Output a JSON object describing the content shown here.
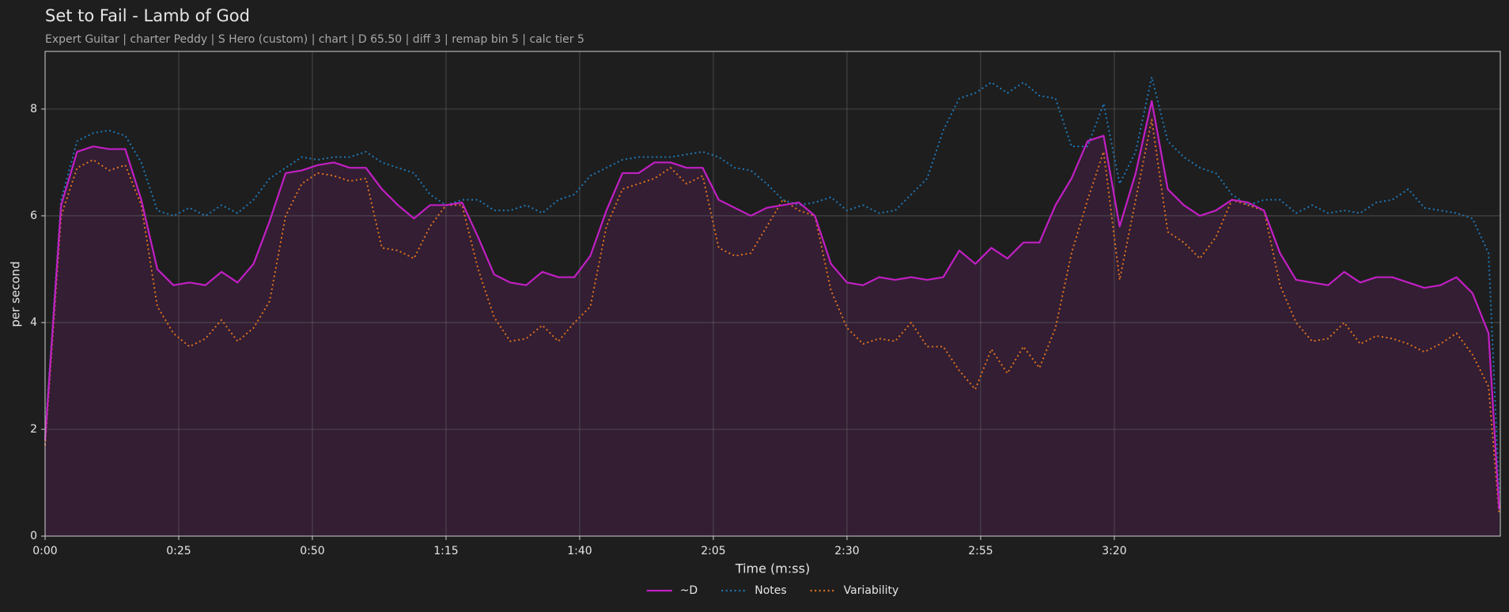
{
  "chart_data": {
    "type": "line",
    "title": "Set to Fail - Lamb of God",
    "subtitle": "Expert Guitar  |  charter Peddy  |  S Hero (custom)  |  chart  |  D 65.50  |  diff 3  |  remap bin 5  |  calc tier 5",
    "xlabel": "Time (m:ss)",
    "ylabel": "per second",
    "x": [
      0,
      3,
      6,
      9,
      12,
      15,
      18,
      21,
      24,
      27,
      30,
      33,
      36,
      39,
      42,
      45,
      48,
      51,
      54,
      57,
      60,
      63,
      66,
      69,
      72,
      75,
      78,
      81,
      84,
      87,
      90,
      93,
      96,
      99,
      102,
      105,
      108,
      111,
      114,
      117,
      120,
      123,
      126,
      129,
      132,
      135,
      138,
      141,
      144,
      147,
      150,
      153,
      156,
      159,
      162,
      165,
      168,
      171,
      174,
      177,
      180,
      183,
      186,
      189,
      192,
      195,
      198,
      201,
      204,
      207,
      210,
      213,
      216,
      219,
      222,
      225,
      228,
      231,
      234,
      237,
      240,
      243,
      246,
      249,
      252,
      255,
      258,
      261,
      264,
      267,
      270,
      272
    ],
    "series": [
      {
        "name": "~D",
        "color": "#c21fc4",
        "linestyle": "solid",
        "fill": true,
        "values": [
          1.8,
          6.2,
          7.2,
          7.3,
          7.25,
          7.25,
          6.3,
          5.0,
          4.7,
          4.75,
          4.7,
          4.95,
          4.75,
          5.1,
          5.9,
          6.8,
          6.85,
          6.95,
          7.0,
          6.9,
          6.9,
          6.5,
          6.2,
          5.95,
          6.2,
          6.2,
          6.25,
          5.6,
          4.9,
          4.75,
          4.7,
          4.95,
          4.85,
          4.85,
          5.25,
          6.1,
          6.8,
          6.8,
          7.0,
          7.0,
          6.9,
          6.9,
          6.3,
          6.15,
          6.0,
          6.15,
          6.2,
          6.25,
          6.0,
          5.1,
          4.75,
          4.7,
          4.85,
          4.8,
          4.85,
          4.8,
          4.85,
          5.35,
          5.1,
          5.4,
          5.2,
          5.5,
          5.5,
          6.2,
          6.7,
          7.4,
          7.5,
          5.8,
          6.8,
          8.15,
          6.5,
          6.2,
          6.0,
          6.1,
          6.3,
          6.25,
          6.1,
          5.3,
          4.8,
          4.75,
          4.7,
          4.95,
          4.75,
          4.85,
          4.85,
          4.75,
          4.65,
          4.7,
          4.85,
          4.55,
          3.8,
          0.5
        ]
      },
      {
        "name": "Notes",
        "color": "#1f78b8",
        "linestyle": "dotted",
        "fill": false,
        "values": [
          1.9,
          6.3,
          7.4,
          7.55,
          7.6,
          7.5,
          7.0,
          6.1,
          6.0,
          6.15,
          6.0,
          6.2,
          6.05,
          6.3,
          6.7,
          6.9,
          7.1,
          7.05,
          7.1,
          7.1,
          7.2,
          7.0,
          6.9,
          6.8,
          6.4,
          6.2,
          6.3,
          6.3,
          6.1,
          6.1,
          6.2,
          6.05,
          6.3,
          6.4,
          6.75,
          6.9,
          7.05,
          7.1,
          7.1,
          7.1,
          7.15,
          7.2,
          7.1,
          6.9,
          6.85,
          6.6,
          6.3,
          6.2,
          6.25,
          6.35,
          6.1,
          6.2,
          6.05,
          6.1,
          6.4,
          6.7,
          7.6,
          8.2,
          8.3,
          8.5,
          8.3,
          8.5,
          8.25,
          8.2,
          7.3,
          7.3,
          8.1,
          6.6,
          7.2,
          8.6,
          7.4,
          7.1,
          6.9,
          6.8,
          6.4,
          6.2,
          6.3,
          6.3,
          6.05,
          6.2,
          6.05,
          6.1,
          6.05,
          6.25,
          6.3,
          6.5,
          6.15,
          6.1,
          6.05,
          5.95,
          5.3,
          0.8
        ]
      },
      {
        "name": "Variability",
        "color": "#e0731f",
        "linestyle": "dotted",
        "fill": false,
        "values": [
          1.7,
          6.0,
          6.9,
          7.05,
          6.85,
          6.95,
          6.2,
          4.3,
          3.8,
          3.55,
          3.7,
          4.05,
          3.65,
          3.9,
          4.4,
          6.0,
          6.6,
          6.8,
          6.75,
          6.65,
          6.7,
          5.4,
          5.35,
          5.2,
          5.8,
          6.2,
          6.2,
          5.0,
          4.1,
          3.65,
          3.7,
          3.95,
          3.65,
          4.0,
          4.3,
          5.8,
          6.5,
          6.6,
          6.7,
          6.9,
          6.6,
          6.75,
          5.4,
          5.25,
          5.3,
          5.8,
          6.3,
          6.1,
          6.0,
          4.6,
          3.9,
          3.6,
          3.7,
          3.65,
          4.0,
          3.55,
          3.55,
          3.1,
          2.75,
          3.5,
          3.05,
          3.55,
          3.15,
          3.9,
          5.3,
          6.3,
          7.2,
          4.8,
          6.3,
          7.8,
          5.7,
          5.5,
          5.2,
          5.6,
          6.3,
          6.2,
          6.1,
          4.7,
          4.0,
          3.65,
          3.7,
          4.0,
          3.6,
          3.75,
          3.7,
          3.6,
          3.45,
          3.6,
          3.8,
          3.4,
          2.8,
          0.4
        ]
      }
    ],
    "xlim": [
      0,
      272.2
    ],
    "ylim": [
      0,
      9.08
    ],
    "xticks": [
      {
        "value": 0,
        "label": "0:00"
      },
      {
        "value": 25,
        "label": "0:25"
      },
      {
        "value": 50,
        "label": "0:50"
      },
      {
        "value": 75,
        "label": "1:15"
      },
      {
        "value": 100,
        "label": "1:40"
      },
      {
        "value": 125,
        "label": "2:05"
      },
      {
        "value": 150,
        "label": "2:30"
      },
      {
        "value": 175,
        "label": "2:55"
      },
      {
        "value": 200,
        "label": "3:20"
      }
    ],
    "yticks": [
      0,
      2,
      4,
      6,
      8
    ],
    "grid": true,
    "legend": "bottom"
  }
}
